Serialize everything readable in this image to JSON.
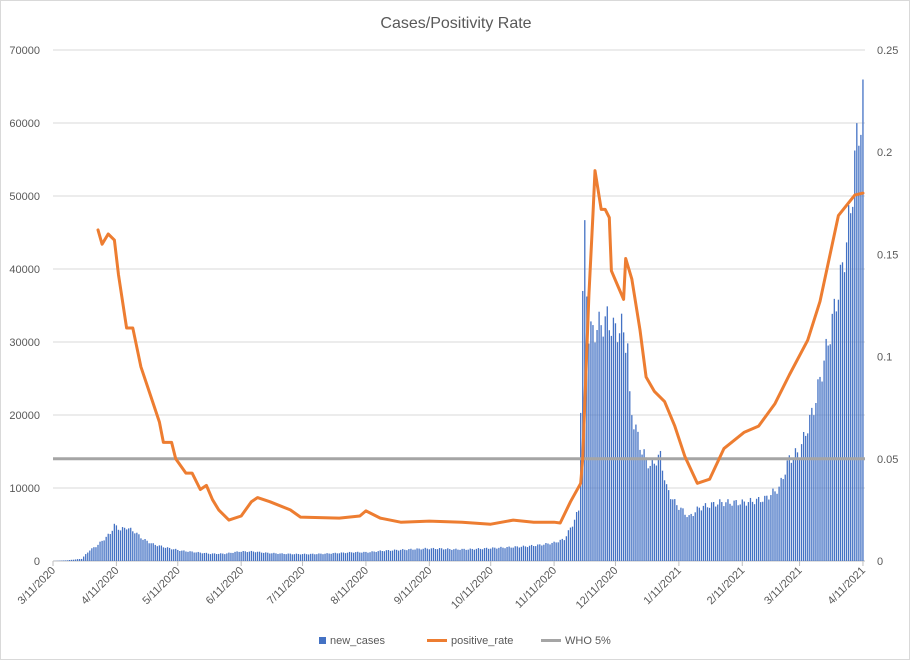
{
  "chart_data": {
    "type": "bar+line",
    "title": "Cases/Positivity Rate",
    "x_start_date": "3/11/2020",
    "x_unit": "days since 3/11/2020",
    "x_tick_labels": [
      "3/11/2020",
      "4/11/2020",
      "5/11/2020",
      "6/11/2020",
      "7/11/2020",
      "8/11/2020",
      "9/11/2020",
      "10/11/2020",
      "11/11/2020",
      "12/11/2020",
      "1/11/2021",
      "2/11/2021",
      "3/11/2021",
      "4/11/2021"
    ],
    "x_tick_days": [
      0,
      31,
      61,
      92,
      122,
      153,
      184,
      214,
      245,
      275,
      306,
      337,
      365,
      396
    ],
    "x_range": [
      0,
      397
    ],
    "y_left": {
      "range": [
        0,
        70000
      ],
      "ticks": [
        "0",
        "10000",
        "20000",
        "30000",
        "40000",
        "50000",
        "60000",
        "70000"
      ]
    },
    "y_right": {
      "range": [
        0,
        0.25
      ],
      "ticks": [
        "0",
        "0.05",
        "0.1",
        "0.15",
        "0.2",
        "0.25"
      ]
    },
    "grid": true,
    "legend_position": "bottom",
    "series": [
      {
        "name": "new_cases",
        "type": "bar",
        "axis": "left",
        "color": "#4472c4",
        "points": [
          [
            0,
            0
          ],
          [
            7,
            100
          ],
          [
            14,
            300
          ],
          [
            18,
            1500
          ],
          [
            21,
            2000
          ],
          [
            25,
            3000
          ],
          [
            28,
            3800
          ],
          [
            30,
            4900
          ],
          [
            33,
            4300
          ],
          [
            36,
            4600
          ],
          [
            40,
            4000
          ],
          [
            44,
            3000
          ],
          [
            49,
            2300
          ],
          [
            56,
            1800
          ],
          [
            63,
            1400
          ],
          [
            70,
            1200
          ],
          [
            77,
            1000
          ],
          [
            84,
            1000
          ],
          [
            91,
            1300
          ],
          [
            98,
            1300
          ],
          [
            105,
            1100
          ],
          [
            112,
            1000
          ],
          [
            119,
            950
          ],
          [
            126,
            950
          ],
          [
            133,
            1000
          ],
          [
            140,
            1100
          ],
          [
            147,
            1200
          ],
          [
            154,
            1200
          ],
          [
            161,
            1400
          ],
          [
            168,
            1500
          ],
          [
            175,
            1600
          ],
          [
            182,
            1700
          ],
          [
            189,
            1700
          ],
          [
            196,
            1600
          ],
          [
            203,
            1600
          ],
          [
            210,
            1700
          ],
          [
            217,
            1800
          ],
          [
            224,
            1900
          ],
          [
            231,
            2000
          ],
          [
            238,
            2200
          ],
          [
            245,
            2500
          ],
          [
            250,
            3000
          ],
          [
            254,
            5000
          ],
          [
            257,
            7000
          ],
          [
            259,
            36000
          ],
          [
            260,
            44500
          ],
          [
            262,
            31000
          ],
          [
            266,
            32000
          ],
          [
            271,
            33100
          ],
          [
            275,
            31500
          ],
          [
            278,
            32000
          ],
          [
            281,
            29500
          ],
          [
            282,
            22000
          ],
          [
            284,
            19000
          ],
          [
            288,
            15000
          ],
          [
            292,
            13000
          ],
          [
            297,
            14400
          ],
          [
            300,
            10000
          ],
          [
            304,
            8000
          ],
          [
            311,
            6000
          ],
          [
            316,
            7300
          ],
          [
            326,
            8000
          ],
          [
            338,
            8000
          ],
          [
            348,
            8500
          ],
          [
            355,
            10000
          ],
          [
            360,
            14000
          ],
          [
            365,
            15000
          ],
          [
            372,
            21000
          ],
          [
            379,
            30000
          ],
          [
            386,
            40000
          ],
          [
            390,
            48000
          ],
          [
            392,
            55000
          ],
          [
            396,
            63000
          ]
        ]
      },
      {
        "name": "positive_rate",
        "type": "line",
        "axis": "right",
        "color": "#ed7d31",
        "points": [
          [
            22,
            0.162
          ],
          [
            24,
            0.155
          ],
          [
            27,
            0.16
          ],
          [
            30,
            0.157
          ],
          [
            32,
            0.14
          ],
          [
            36,
            0.114
          ],
          [
            39,
            0.114
          ],
          [
            43,
            0.095
          ],
          [
            48,
            0.08
          ],
          [
            52,
            0.068
          ],
          [
            54,
            0.058
          ],
          [
            58,
            0.058
          ],
          [
            60,
            0.05
          ],
          [
            65,
            0.043
          ],
          [
            68,
            0.043
          ],
          [
            72,
            0.035
          ],
          [
            75,
            0.037
          ],
          [
            78,
            0.03
          ],
          [
            81,
            0.025
          ],
          [
            86,
            0.02
          ],
          [
            92,
            0.022
          ],
          [
            97,
            0.029
          ],
          [
            100,
            0.031
          ],
          [
            106,
            0.029
          ],
          [
            116,
            0.025
          ],
          [
            121,
            0.0215
          ],
          [
            140,
            0.021
          ],
          [
            150,
            0.022
          ],
          [
            153,
            0.0245
          ],
          [
            160,
            0.021
          ],
          [
            170,
            0.019
          ],
          [
            184,
            0.0195
          ],
          [
            200,
            0.019
          ],
          [
            214,
            0.018
          ],
          [
            225,
            0.02
          ],
          [
            235,
            0.019
          ],
          [
            245,
            0.019
          ],
          [
            248,
            0.0186
          ],
          [
            253,
            0.029
          ],
          [
            258,
            0.038
          ],
          [
            259,
            0.05
          ],
          [
            262,
            0.13
          ],
          [
            264,
            0.17
          ],
          [
            265,
            0.191
          ],
          [
            268,
            0.172
          ],
          [
            270,
            0.172
          ],
          [
            272,
            0.168
          ],
          [
            273,
            0.142
          ],
          [
            276,
            0.135
          ],
          [
            279,
            0.128
          ],
          [
            280,
            0.148
          ],
          [
            283,
            0.138
          ],
          [
            287,
            0.113
          ],
          [
            290,
            0.09
          ],
          [
            294,
            0.083
          ],
          [
            299,
            0.078
          ],
          [
            304,
            0.066
          ],
          [
            309,
            0.051
          ],
          [
            315,
            0.038
          ],
          [
            321,
            0.04
          ],
          [
            328,
            0.055
          ],
          [
            338,
            0.063
          ],
          [
            345,
            0.066
          ],
          [
            353,
            0.077
          ],
          [
            360,
            0.091
          ],
          [
            369,
            0.108
          ],
          [
            375,
            0.127
          ],
          [
            384,
            0.169
          ],
          [
            392,
            0.179
          ],
          [
            396,
            0.18
          ]
        ]
      },
      {
        "name": "WHO 5%",
        "type": "line",
        "axis": "right",
        "color": "#a5a5a5",
        "value": 0.05
      }
    ]
  }
}
